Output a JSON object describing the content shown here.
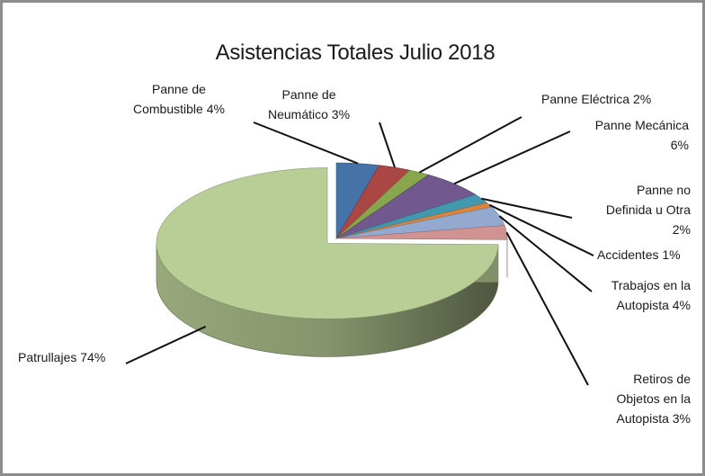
{
  "chart_data": {
    "type": "pie",
    "title": "Asistencias  Totales Julio 2018",
    "categories": [
      "Panne de Combustible",
      "Panne de Neumático",
      "Panne Eléctrica",
      "Panne Mecánica",
      "Panne no Definida u Otra",
      "Accidentes",
      "Trabajos en la Autopista",
      "Retiros de Objetos en la Autopista",
      "Patrullajes"
    ],
    "values": [
      4,
      3,
      2,
      6,
      2,
      1,
      4,
      3,
      74
    ],
    "colors": [
      "#4572a7",
      "#aa4643",
      "#89a54e",
      "#71588f",
      "#4198af",
      "#db843d",
      "#93a9cf",
      "#d19392",
      "#b9cd96"
    ],
    "labels": [
      [
        "Panne de",
        "Combustible  4%"
      ],
      [
        "Panne de",
        "Neumático  3%"
      ],
      [
        "Panne Eléctrica  2%"
      ],
      [
        "Panne Mecánica",
        "6%"
      ],
      [
        "Panne no",
        "Definida  u Otra",
        "2%"
      ],
      [
        "Accidentes  1%"
      ],
      [
        "Trabajos  en la",
        "Autopista  4%"
      ],
      [
        "Retiros  de",
        "Objetos en la",
        "Autopista  3%"
      ],
      [
        "Patrullajes  74%"
      ]
    ],
    "legend": "none (data labels with leader lines)",
    "style": "3d exploded pie"
  }
}
